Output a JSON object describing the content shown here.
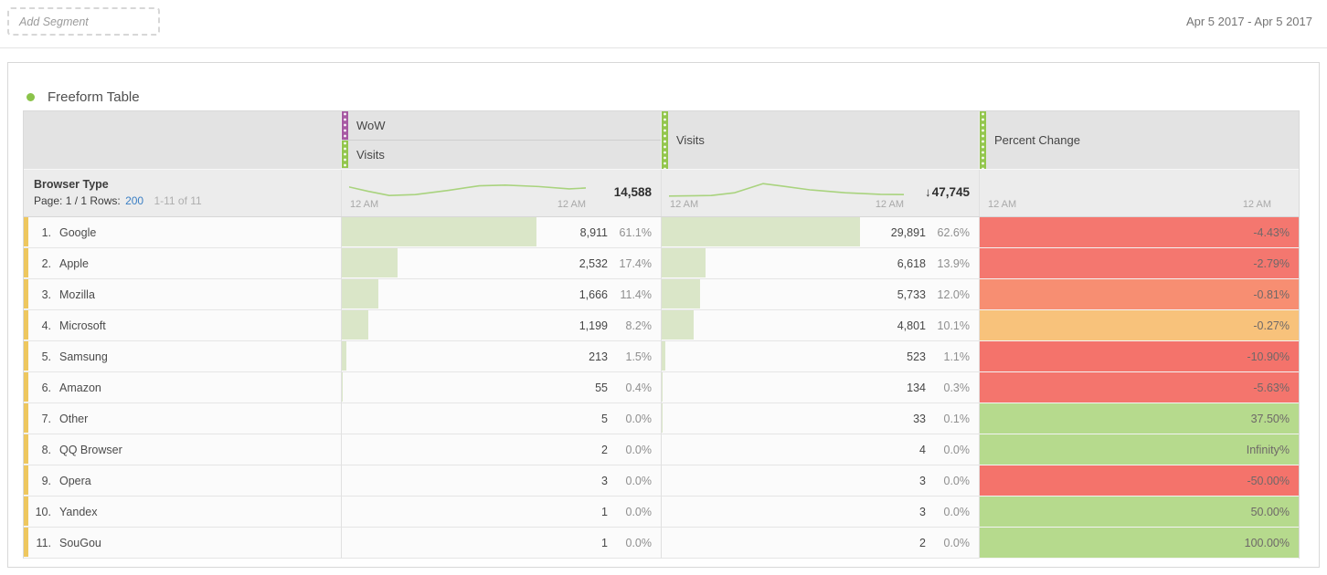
{
  "page": {
    "add_segment_label": "Add Segment",
    "date_range": "Apr 5 2017 - Apr 5 2017"
  },
  "panel": {
    "title": "Freeform Table",
    "accent_color": "#8bc34a"
  },
  "table": {
    "header": {
      "wow_label": "WoW",
      "wow_sub_label": "Visits",
      "visits_label": "Visits",
      "change_label": "Percent Change",
      "wow_handle_color": "#a75aa3",
      "visits_handle_color": "#93c64d",
      "change_handle_color": "#93c64d"
    },
    "dimension": {
      "name": "Browser Type",
      "page_label": "Page: 1 / 1",
      "rows_label": "Rows:",
      "rows_value": "200",
      "range_label": "1-11 of 11"
    },
    "totals": {
      "wow": {
        "time_start": "12 AM",
        "time_end": "12 AM",
        "arrow": "",
        "total": "14,588"
      },
      "visits": {
        "time_start": "12 AM",
        "time_end": "12 AM",
        "arrow": "↓",
        "total": "47,745"
      },
      "change": {
        "time_start": "12 AM",
        "time_end": "12 AM"
      }
    },
    "sparklines": {
      "color": "#a9d37e",
      "wow": [
        [
          0,
          0.38
        ],
        [
          0.08,
          0.56
        ],
        [
          0.17,
          0.74
        ],
        [
          0.28,
          0.7
        ],
        [
          0.42,
          0.52
        ],
        [
          0.55,
          0.33
        ],
        [
          0.66,
          0.3
        ],
        [
          0.8,
          0.36
        ],
        [
          0.93,
          0.46
        ],
        [
          1,
          0.42
        ]
      ],
      "visits": [
        [
          0,
          0.76
        ],
        [
          0.18,
          0.74
        ],
        [
          0.28,
          0.62
        ],
        [
          0.4,
          0.24
        ],
        [
          0.48,
          0.34
        ],
        [
          0.6,
          0.5
        ],
        [
          0.75,
          0.62
        ],
        [
          0.9,
          0.69
        ],
        [
          1,
          0.7
        ]
      ]
    },
    "colors": {
      "bar_fill": "#dae6c8",
      "row_strip": "#eec75f"
    },
    "rows": [
      {
        "index": "1.",
        "name": "Google",
        "wow_value": "8,911",
        "wow_pct": "61.1%",
        "wow_bar": 61.1,
        "visits_value": "29,891",
        "visits_pct": "62.6%",
        "visits_bar": 62.6,
        "change": "-4.43%",
        "change_color": "#f4776f"
      },
      {
        "index": "2.",
        "name": "Apple",
        "wow_value": "2,532",
        "wow_pct": "17.4%",
        "wow_bar": 17.4,
        "visits_value": "6,618",
        "visits_pct": "13.9%",
        "visits_bar": 13.9,
        "change": "-2.79%",
        "change_color": "#f4776f"
      },
      {
        "index": "3.",
        "name": "Mozilla",
        "wow_value": "1,666",
        "wow_pct": "11.4%",
        "wow_bar": 11.4,
        "visits_value": "5,733",
        "visits_pct": "12.0%",
        "visits_bar": 12.0,
        "change": "-0.81%",
        "change_color": "#f78e72"
      },
      {
        "index": "4.",
        "name": "Microsoft",
        "wow_value": "1,199",
        "wow_pct": "8.2%",
        "wow_bar": 8.2,
        "visits_value": "4,801",
        "visits_pct": "10.1%",
        "visits_bar": 10.1,
        "change": "-0.27%",
        "change_color": "#f8c27b"
      },
      {
        "index": "5.",
        "name": "Samsung",
        "wow_value": "213",
        "wow_pct": "1.5%",
        "wow_bar": 1.5,
        "visits_value": "523",
        "visits_pct": "1.1%",
        "visits_bar": 1.1,
        "change": "-10.90%",
        "change_color": "#f4736b"
      },
      {
        "index": "6.",
        "name": "Amazon",
        "wow_value": "55",
        "wow_pct": "0.4%",
        "wow_bar": 0.4,
        "visits_value": "134",
        "visits_pct": "0.3%",
        "visits_bar": 0.3,
        "change": "-5.63%",
        "change_color": "#f4756d"
      },
      {
        "index": "7.",
        "name": "Other",
        "wow_value": "5",
        "wow_pct": "0.0%",
        "wow_bar": 0,
        "visits_value": "33",
        "visits_pct": "0.1%",
        "visits_bar": 0.1,
        "change": "37.50%",
        "change_color": "#b6da8d"
      },
      {
        "index": "8.",
        "name": "QQ Browser",
        "wow_value": "2",
        "wow_pct": "0.0%",
        "wow_bar": 0,
        "visits_value": "4",
        "visits_pct": "0.0%",
        "visits_bar": 0,
        "change": "Infinity%",
        "change_color": "#b6da8d"
      },
      {
        "index": "9.",
        "name": "Opera",
        "wow_value": "3",
        "wow_pct": "0.0%",
        "wow_bar": 0,
        "visits_value": "3",
        "visits_pct": "0.0%",
        "visits_bar": 0,
        "change": "-50.00%",
        "change_color": "#f4736b"
      },
      {
        "index": "10.",
        "name": "Yandex",
        "wow_value": "1",
        "wow_pct": "0.0%",
        "wow_bar": 0,
        "visits_value": "3",
        "visits_pct": "0.0%",
        "visits_bar": 0,
        "change": "50.00%",
        "change_color": "#b6da8d"
      },
      {
        "index": "11.",
        "name": "SouGou",
        "wow_value": "1",
        "wow_pct": "0.0%",
        "wow_bar": 0,
        "visits_value": "2",
        "visits_pct": "0.0%",
        "visits_bar": 0,
        "change": "100.00%",
        "change_color": "#b6da8d"
      }
    ]
  }
}
